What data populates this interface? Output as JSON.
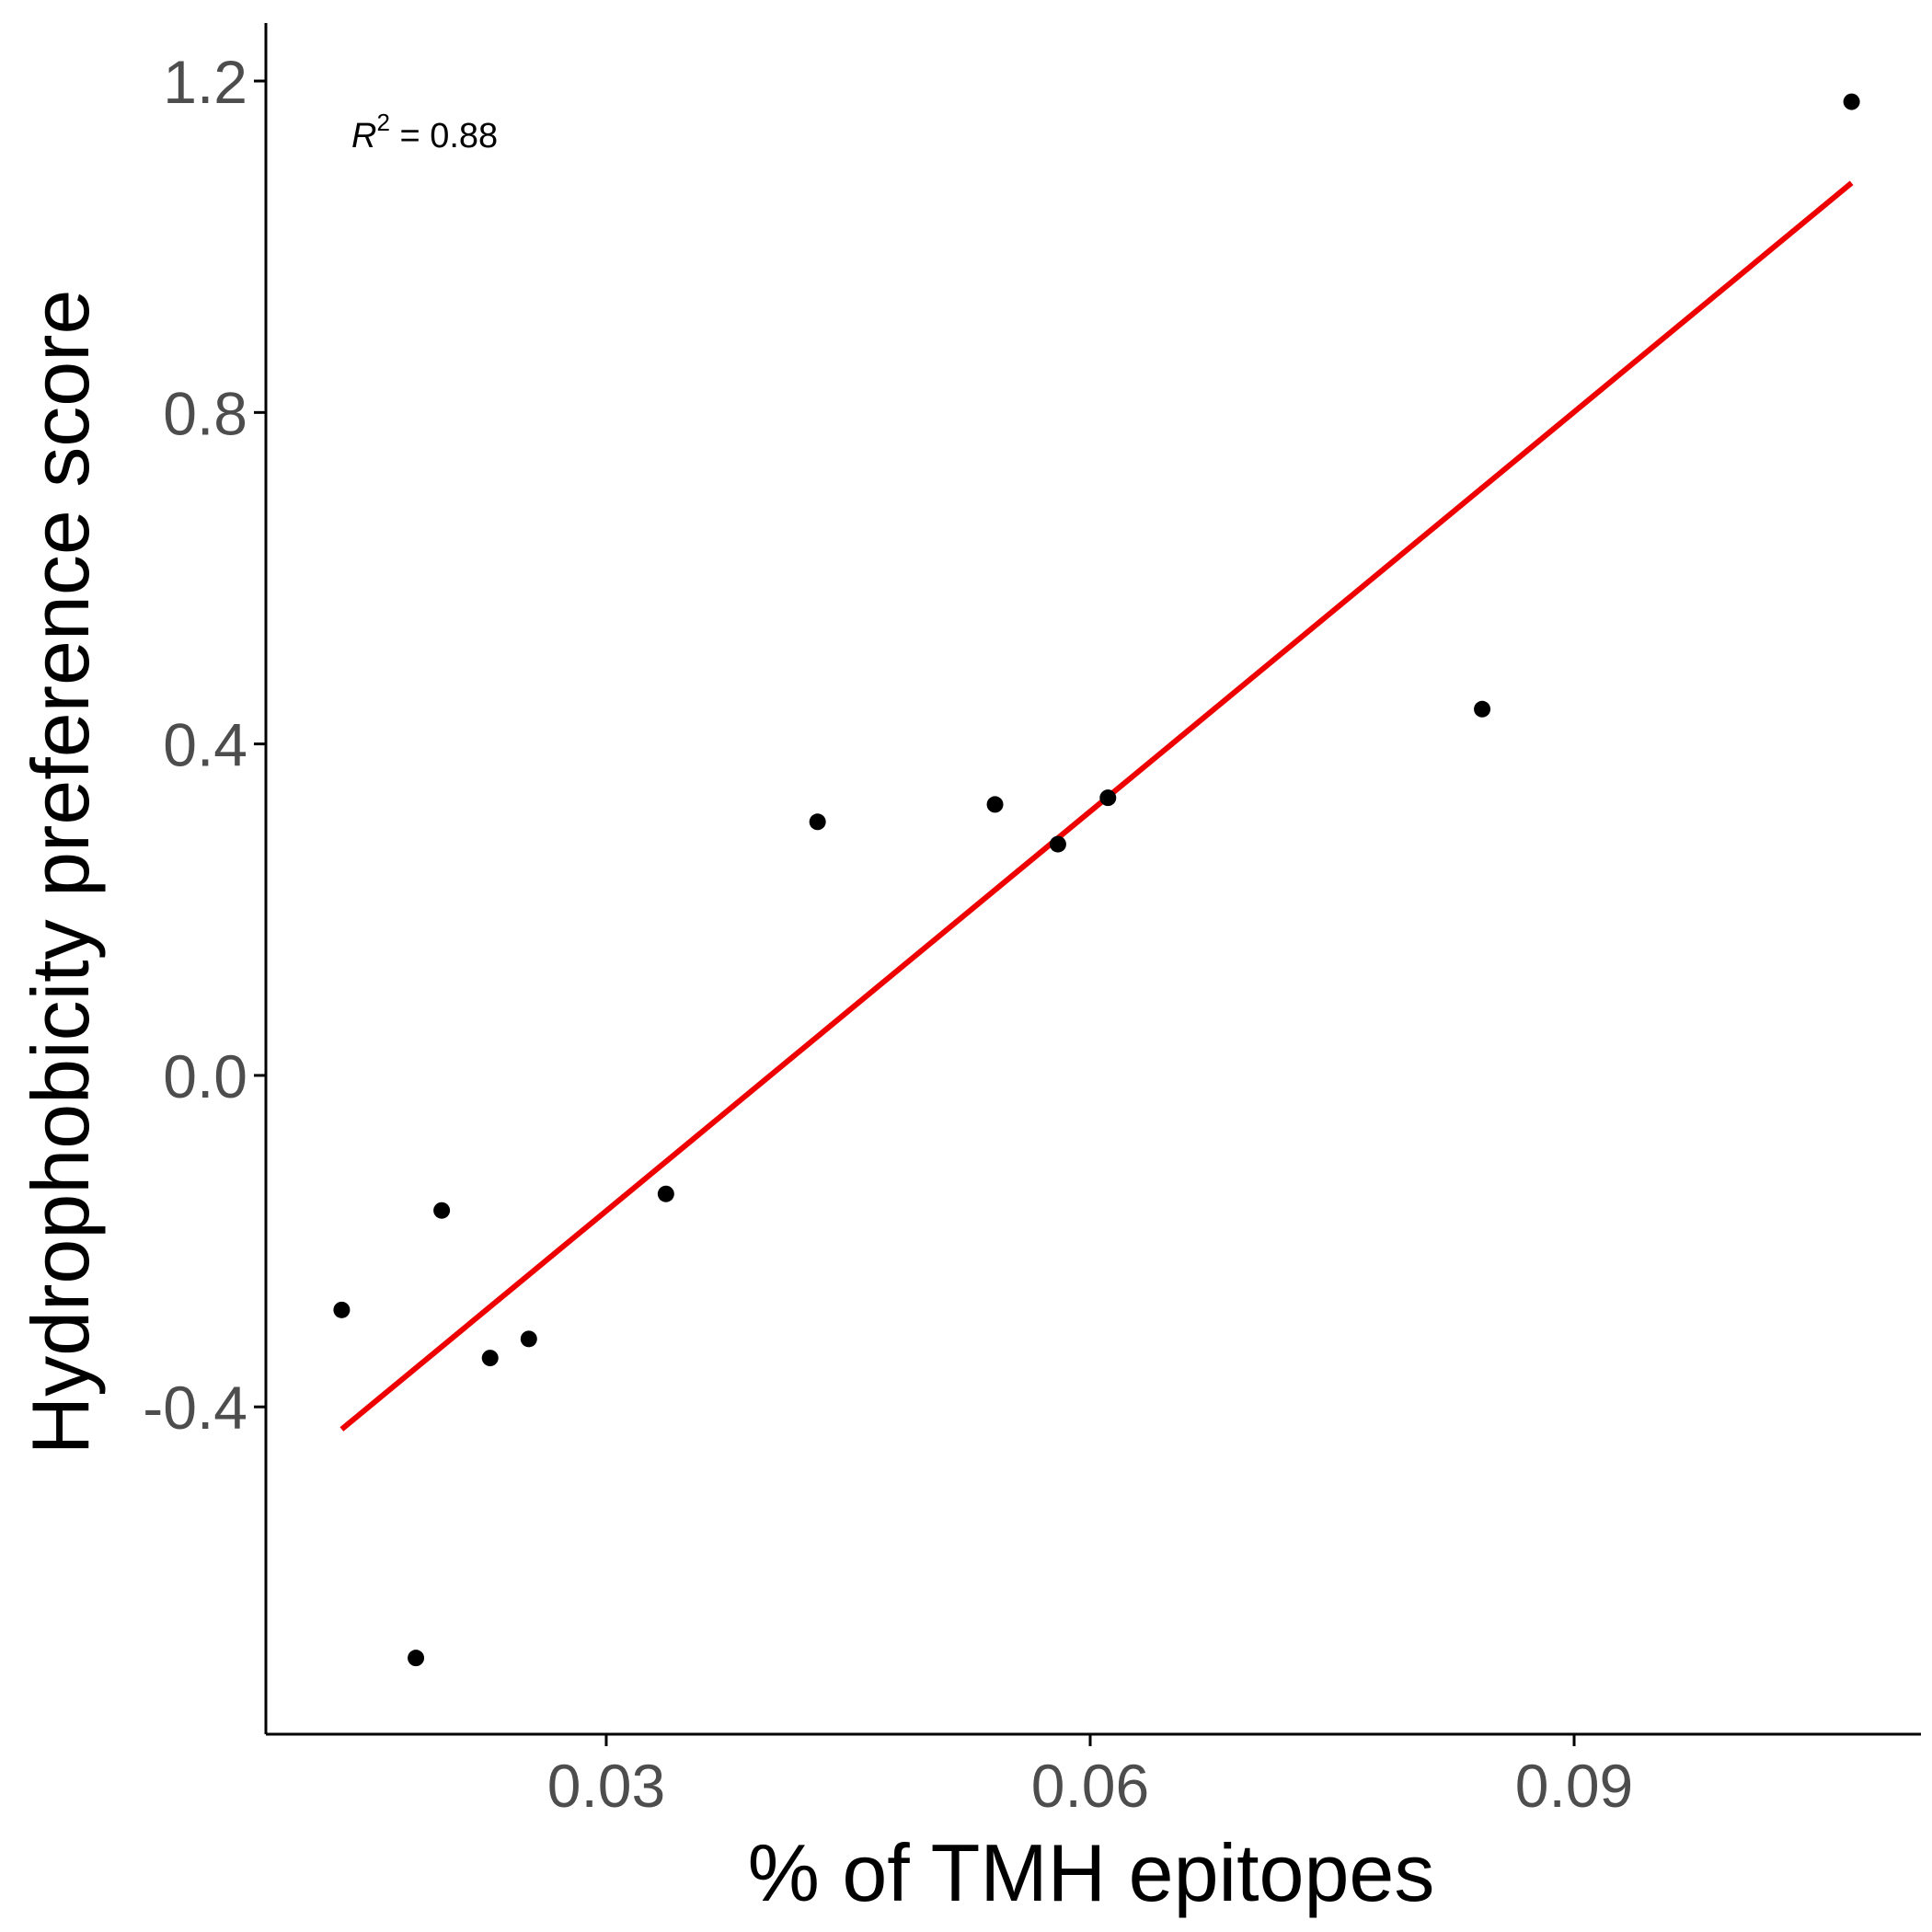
{
  "chart_data": {
    "type": "scatter",
    "title": "",
    "xlabel": "% of TMH epitopes",
    "ylabel": "Hydrophobicity preference score",
    "annotation": {
      "symbol": "R",
      "superscript": "2",
      "text": " = 0.88"
    },
    "xlim": [
      0.0089,
      0.1115
    ],
    "ylim": [
      -0.795,
      1.27
    ],
    "x_ticks": [
      {
        "value": 0.03,
        "label": "0.03"
      },
      {
        "value": 0.06,
        "label": "0.06"
      },
      {
        "value": 0.09,
        "label": "0.09"
      }
    ],
    "y_ticks": [
      {
        "value": -0.4,
        "label": "-0.4"
      },
      {
        "value": 0.0,
        "label": "0.0"
      },
      {
        "value": 0.4,
        "label": "0.4"
      },
      {
        "value": 0.8,
        "label": "0.8"
      },
      {
        "value": 1.2,
        "label": "1.2"
      }
    ],
    "grid": false,
    "legend": "none",
    "series": [
      {
        "marker_color": "#000000",
        "points": [
          {
            "x": 0.0136,
            "y": -0.283
          },
          {
            "x": 0.0182,
            "y": -0.703
          },
          {
            "x": 0.0198,
            "y": -0.163
          },
          {
            "x": 0.0228,
            "y": -0.341
          },
          {
            "x": 0.0252,
            "y": -0.318
          },
          {
            "x": 0.0337,
            "y": -0.143
          },
          {
            "x": 0.0431,
            "y": 0.306
          },
          {
            "x": 0.0541,
            "y": 0.327
          },
          {
            "x": 0.058,
            "y": 0.279
          },
          {
            "x": 0.0611,
            "y": 0.335
          },
          {
            "x": 0.0843,
            "y": 0.442
          },
          {
            "x": 0.1072,
            "y": 1.175
          }
        ]
      }
    ],
    "fit_line": {
      "color": "#ee0000",
      "x": [
        0.0136,
        0.1072
      ],
      "y": [
        -0.427,
        1.077
      ]
    }
  }
}
